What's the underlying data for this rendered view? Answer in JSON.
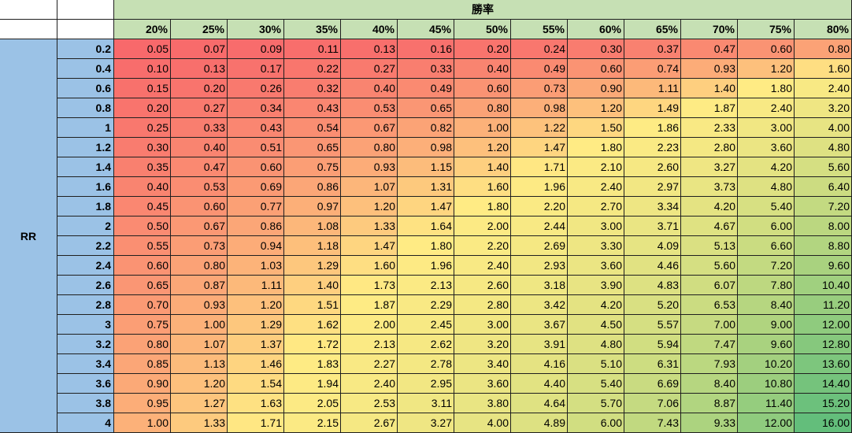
{
  "table": {
    "header_title": "勝率",
    "row_axis_label": "RR",
    "win_rates": [
      "20%",
      "25%",
      "30%",
      "35%",
      "40%",
      "45%",
      "50%",
      "55%",
      "60%",
      "65%",
      "70%",
      "75%",
      "80%"
    ],
    "rr_values": [
      "0.2",
      "0.4",
      "0.6",
      "0.8",
      "1",
      "1.2",
      "1.4",
      "1.6",
      "1.8",
      "2",
      "2.2",
      "2.4",
      "2.6",
      "2.8",
      "3",
      "3.2",
      "3.4",
      "3.6",
      "3.8",
      "4"
    ],
    "values": [
      [
        "0.05",
        "0.07",
        "0.09",
        "0.11",
        "0.13",
        "0.16",
        "0.20",
        "0.24",
        "0.30",
        "0.37",
        "0.47",
        "0.60",
        "0.80"
      ],
      [
        "0.10",
        "0.13",
        "0.17",
        "0.22",
        "0.27",
        "0.33",
        "0.40",
        "0.49",
        "0.60",
        "0.74",
        "0.93",
        "1.20",
        "1.60"
      ],
      [
        "0.15",
        "0.20",
        "0.26",
        "0.32",
        "0.40",
        "0.49",
        "0.60",
        "0.73",
        "0.90",
        "1.11",
        "1.40",
        "1.80",
        "2.40"
      ],
      [
        "0.20",
        "0.27",
        "0.34",
        "0.43",
        "0.53",
        "0.65",
        "0.80",
        "0.98",
        "1.20",
        "1.49",
        "1.87",
        "2.40",
        "3.20"
      ],
      [
        "0.25",
        "0.33",
        "0.43",
        "0.54",
        "0.67",
        "0.82",
        "1.00",
        "1.22",
        "1.50",
        "1.86",
        "2.33",
        "3.00",
        "4.00"
      ],
      [
        "0.30",
        "0.40",
        "0.51",
        "0.65",
        "0.80",
        "0.98",
        "1.20",
        "1.47",
        "1.80",
        "2.23",
        "2.80",
        "3.60",
        "4.80"
      ],
      [
        "0.35",
        "0.47",
        "0.60",
        "0.75",
        "0.93",
        "1.15",
        "1.40",
        "1.71",
        "2.10",
        "2.60",
        "3.27",
        "4.20",
        "5.60"
      ],
      [
        "0.40",
        "0.53",
        "0.69",
        "0.86",
        "1.07",
        "1.31",
        "1.60",
        "1.96",
        "2.40",
        "2.97",
        "3.73",
        "4.80",
        "6.40"
      ],
      [
        "0.45",
        "0.60",
        "0.77",
        "0.97",
        "1.20",
        "1.47",
        "1.80",
        "2.20",
        "2.70",
        "3.34",
        "4.20",
        "5.40",
        "7.20"
      ],
      [
        "0.50",
        "0.67",
        "0.86",
        "1.08",
        "1.33",
        "1.64",
        "2.00",
        "2.44",
        "3.00",
        "3.71",
        "4.67",
        "6.00",
        "8.00"
      ],
      [
        "0.55",
        "0.73",
        "0.94",
        "1.18",
        "1.47",
        "1.80",
        "2.20",
        "2.69",
        "3.30",
        "4.09",
        "5.13",
        "6.60",
        "8.80"
      ],
      [
        "0.60",
        "0.80",
        "1.03",
        "1.29",
        "1.60",
        "1.96",
        "2.40",
        "2.93",
        "3.60",
        "4.46",
        "5.60",
        "7.20",
        "9.60"
      ],
      [
        "0.65",
        "0.87",
        "1.11",
        "1.40",
        "1.73",
        "2.13",
        "2.60",
        "3.18",
        "3.90",
        "4.83",
        "6.07",
        "7.80",
        "10.40"
      ],
      [
        "0.70",
        "0.93",
        "1.20",
        "1.51",
        "1.87",
        "2.29",
        "2.80",
        "3.42",
        "4.20",
        "5.20",
        "6.53",
        "8.40",
        "11.20"
      ],
      [
        "0.75",
        "1.00",
        "1.29",
        "1.62",
        "2.00",
        "2.45",
        "3.00",
        "3.67",
        "4.50",
        "5.57",
        "7.00",
        "9.00",
        "12.00"
      ],
      [
        "0.80",
        "1.07",
        "1.37",
        "1.72",
        "2.13",
        "2.62",
        "3.20",
        "3.91",
        "4.80",
        "5.94",
        "7.47",
        "9.60",
        "12.80"
      ],
      [
        "0.85",
        "1.13",
        "1.46",
        "1.83",
        "2.27",
        "2.78",
        "3.40",
        "4.16",
        "5.10",
        "6.31",
        "7.93",
        "10.20",
        "13.60"
      ],
      [
        "0.90",
        "1.20",
        "1.54",
        "1.94",
        "2.40",
        "2.95",
        "3.60",
        "4.40",
        "5.40",
        "6.69",
        "8.40",
        "10.80",
        "14.40"
      ],
      [
        "0.95",
        "1.27",
        "1.63",
        "2.05",
        "2.53",
        "3.11",
        "3.80",
        "4.64",
        "5.70",
        "7.06",
        "8.87",
        "11.40",
        "15.20"
      ],
      [
        "1.00",
        "1.33",
        "1.71",
        "2.15",
        "2.67",
        "3.27",
        "4.00",
        "4.89",
        "6.00",
        "7.43",
        "9.33",
        "12.00",
        "16.00"
      ]
    ]
  },
  "colors": {
    "scale_low": "#F8696B",
    "scale_mid": "#FFEB84",
    "scale_high": "#63BE7B",
    "header_top": "#C6E0B4",
    "header_rates": "#C6E0B4",
    "row_header": "#9BC2E6",
    "grid_line": "#1F1F1F"
  }
}
